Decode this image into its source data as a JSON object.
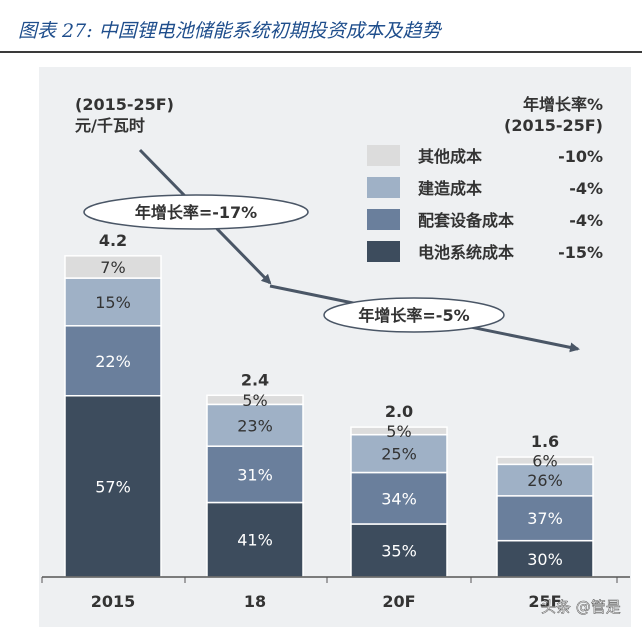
{
  "figure_title": "图表 27:  中国锂电池储能系统初期投资成本及趋势",
  "watermark": "头条 @管是",
  "unit_note": {
    "line1": "(2015-25F)",
    "line2": "元/千瓦时"
  },
  "legend_header": {
    "line1": "年增长率%",
    "line2": "(2015-25F)"
  },
  "annotations": [
    {
      "text": "年增长率=-17%"
    },
    {
      "text": "年增长率=-5%"
    }
  ],
  "colors": {
    "电池系统成本": "#3d4c5d",
    "配套设备成本": "#6a7f9c",
    "建造成本": "#9fb1c6",
    "其他成本": "#dcdcdc",
    "arrow": "#4a5666"
  },
  "chart_data": {
    "type": "bar",
    "stacked": true,
    "categories": [
      "2015",
      "18",
      "20F",
      "25F"
    ],
    "totals": [
      4.2,
      2.4,
      2.0,
      1.6
    ],
    "ylim": [
      0,
      4.2
    ],
    "grid": false,
    "legend_position": "top-right",
    "series": [
      {
        "name": "电池系统成本",
        "cagr": "-15%",
        "shares": [
          57,
          41,
          35,
          30
        ]
      },
      {
        "name": "配套设备成本",
        "cagr": "-4%",
        "shares": [
          22,
          31,
          34,
          37
        ]
      },
      {
        "name": "建造成本",
        "cagr": "-4%",
        "shares": [
          15,
          23,
          25,
          26
        ]
      },
      {
        "name": "其他成本",
        "cagr": "-10%",
        "shares": [
          7,
          5,
          5,
          6
        ]
      }
    ]
  }
}
